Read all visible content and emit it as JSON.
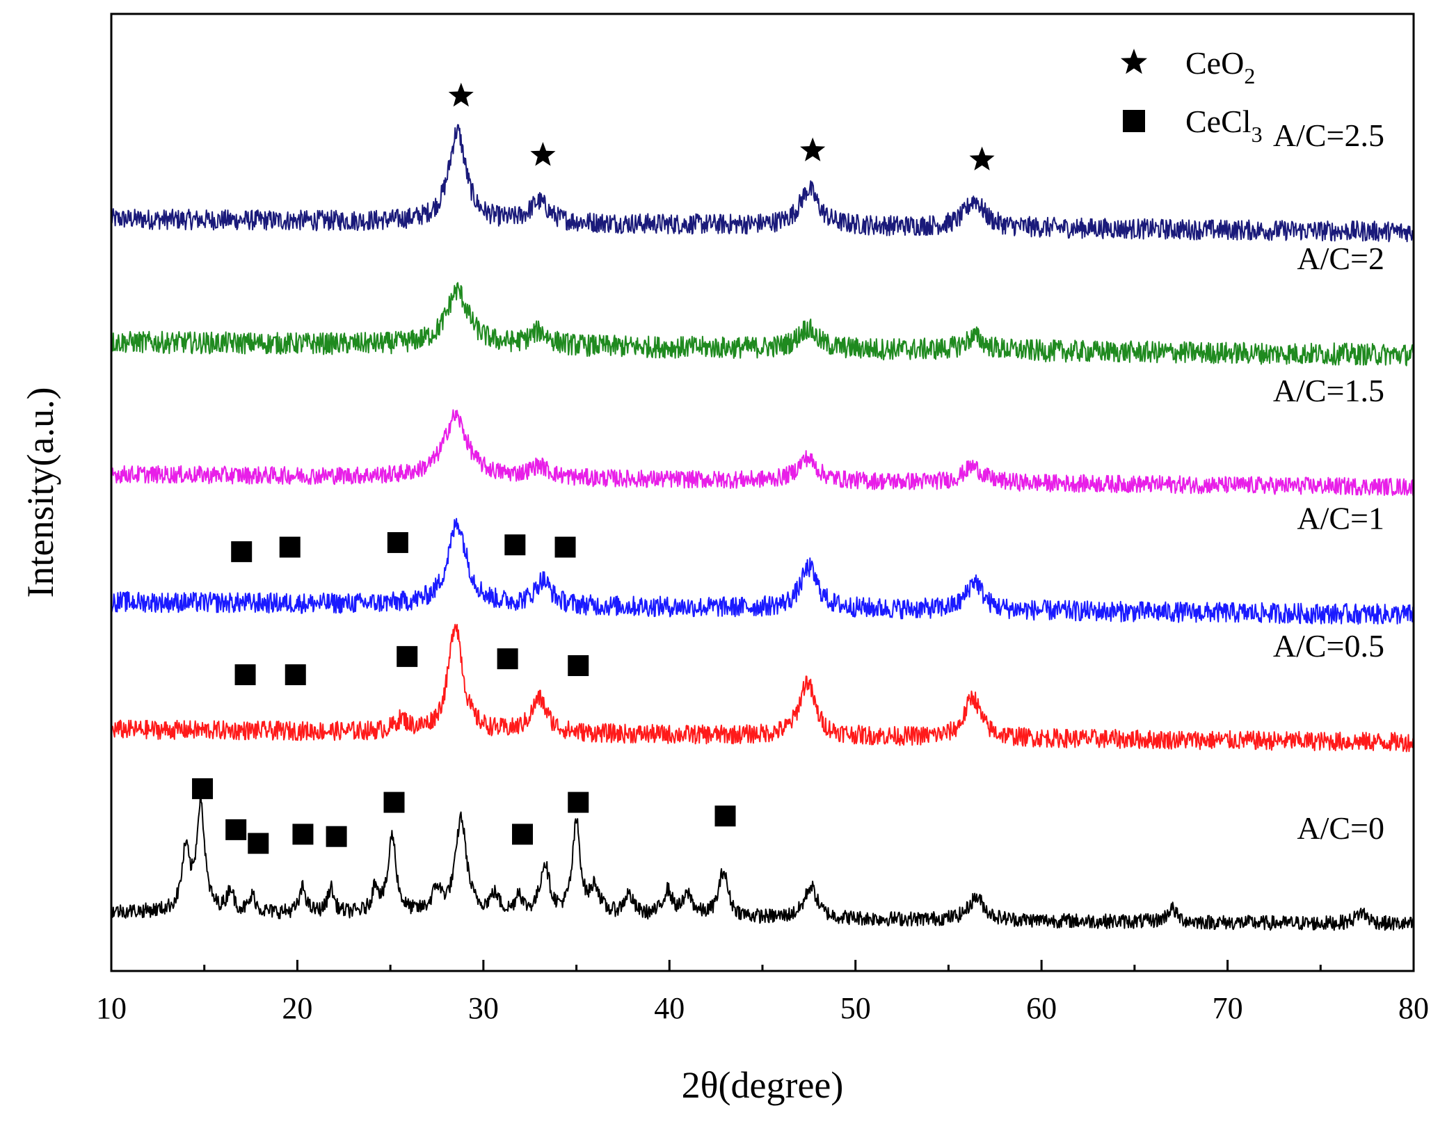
{
  "chart_data": {
    "type": "line",
    "title": "",
    "xlabel": "2θ(degree)",
    "ylabel": "Intensity(a.u.)",
    "xlim": [
      10,
      80
    ],
    "xticks": [
      10,
      20,
      30,
      40,
      50,
      60,
      70,
      80
    ],
    "xtick_labels": [
      "10",
      "20",
      "30",
      "40",
      "50",
      "60",
      "70",
      "80"
    ],
    "yticks_shown": false,
    "legend": {
      "placement": "top-right",
      "items": [
        {
          "marker": "star",
          "label": "CeO",
          "sub": "2"
        },
        {
          "marker": "square",
          "label": "CeCl",
          "sub": "3"
        }
      ]
    },
    "series": [
      {
        "name": "A/C=2.5",
        "color": "#1a1a7a",
        "baseline": 12.0,
        "noise": 0.28,
        "peaks": [
          [
            28.6,
            2.0,
            0.55
          ],
          [
            33.0,
            0.45,
            0.6
          ],
          [
            47.5,
            0.8,
            0.6
          ],
          [
            56.4,
            0.6,
            0.6
          ]
        ],
        "markers": {
          "type": "star",
          "positions": [
            [
              28.8,
              14.7
            ],
            [
              33.2,
              13.4
            ],
            [
              47.7,
              13.5
            ],
            [
              56.8,
              13.3
            ]
          ]
        }
      },
      {
        "name": "A/C=2",
        "color": "#1f8a1f",
        "baseline": 9.3,
        "noise": 0.3,
        "peaks": [
          [
            28.6,
            1.2,
            0.7
          ],
          [
            33.0,
            0.3,
            0.6
          ],
          [
            47.4,
            0.45,
            0.6
          ],
          [
            56.4,
            0.3,
            0.6
          ]
        ]
      },
      {
        "name": "A/C=1.5",
        "color": "#e81ee8",
        "baseline": 6.4,
        "noise": 0.24,
        "peaks": [
          [
            28.5,
            1.35,
            0.75
          ],
          [
            33.0,
            0.25,
            0.6
          ],
          [
            47.4,
            0.5,
            0.6
          ],
          [
            56.3,
            0.35,
            0.6
          ]
        ]
      },
      {
        "name": "A/C=1",
        "color": "#1a1aff",
        "baseline": 3.6,
        "noise": 0.28,
        "peaks": [
          [
            28.6,
            1.8,
            0.6
          ],
          [
            33.2,
            0.55,
            0.5
          ],
          [
            47.5,
            0.9,
            0.55
          ],
          [
            56.4,
            0.65,
            0.5
          ]
        ],
        "markers": {
          "type": "square",
          "positions": [
            [
              17.0,
              4.7
            ],
            [
              19.6,
              4.8
            ],
            [
              25.4,
              4.9
            ],
            [
              31.7,
              4.85
            ],
            [
              34.4,
              4.8
            ]
          ]
        }
      },
      {
        "name": "A/C=0.5",
        "color": "#ff1a1a",
        "baseline": 0.8,
        "noise": 0.26,
        "peaks": [
          [
            28.5,
            2.4,
            0.45
          ],
          [
            33.0,
            0.75,
            0.5
          ],
          [
            47.4,
            1.2,
            0.5
          ],
          [
            56.3,
            0.9,
            0.5
          ],
          [
            25.6,
            0.25,
            0.4
          ]
        ],
        "markers": {
          "type": "square",
          "positions": [
            [
              17.2,
              2.0
            ],
            [
              19.9,
              2.0
            ],
            [
              25.9,
              2.4
            ],
            [
              31.3,
              2.35
            ],
            [
              35.1,
              2.2
            ]
          ]
        }
      },
      {
        "name": "A/C=0",
        "color": "#000000",
        "baseline": -3.2,
        "noise": 0.2,
        "peaks": [
          [
            14.0,
            1.3,
            0.25
          ],
          [
            14.8,
            2.4,
            0.25
          ],
          [
            16.4,
            0.5,
            0.2
          ],
          [
            17.6,
            0.35,
            0.2
          ],
          [
            20.3,
            0.55,
            0.2
          ],
          [
            21.8,
            0.55,
            0.2
          ],
          [
            24.2,
            0.6,
            0.2
          ],
          [
            25.1,
            1.7,
            0.25
          ],
          [
            27.5,
            0.5,
            0.3
          ],
          [
            28.8,
            2.1,
            0.35
          ],
          [
            30.6,
            0.4,
            0.3
          ],
          [
            31.9,
            0.45,
            0.2
          ],
          [
            33.3,
            1.1,
            0.3
          ],
          [
            35.0,
            2.0,
            0.25
          ],
          [
            36.0,
            0.6,
            0.3
          ],
          [
            37.8,
            0.45,
            0.3
          ],
          [
            39.9,
            0.55,
            0.3
          ],
          [
            41.0,
            0.45,
            0.3
          ],
          [
            42.9,
            1.0,
            0.3
          ],
          [
            47.6,
            0.7,
            0.4
          ],
          [
            56.5,
            0.5,
            0.5
          ],
          [
            67.0,
            0.3,
            0.3
          ],
          [
            77.2,
            0.25,
            0.4
          ]
        ],
        "markers": {
          "type": "square",
          "positions": [
            [
              14.9,
              -0.5
            ],
            [
              16.7,
              -1.4
            ],
            [
              17.9,
              -1.7
            ],
            [
              20.3,
              -1.5
            ],
            [
              22.1,
              -1.55
            ],
            [
              25.2,
              -0.8
            ],
            [
              32.1,
              -1.5
            ],
            [
              35.1,
              -0.8
            ],
            [
              43.0,
              -1.1
            ]
          ]
        }
      }
    ]
  }
}
